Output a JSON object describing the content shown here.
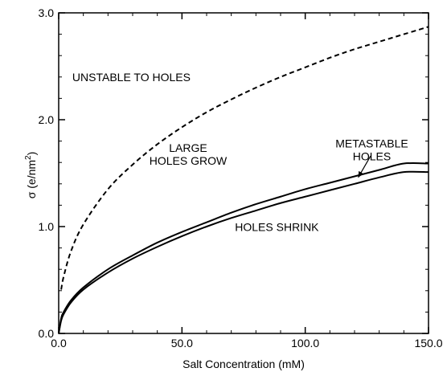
{
  "chart_data": {
    "type": "line",
    "title": "",
    "xlabel": "Salt Concentration (mM)",
    "ylabel_main": "σ  (e/nm",
    "ylabel_sup": "2",
    "ylabel_close": ")",
    "xlim": [
      0,
      150
    ],
    "ylim": [
      0,
      3.0
    ],
    "grid": false,
    "legend": "none",
    "x_ticks": [
      0,
      50,
      100,
      150
    ],
    "x_tick_labels": [
      "0.0",
      "50.0",
      "100.0",
      "150.0"
    ],
    "y_ticks": [
      0,
      1.0,
      2.0,
      3.0
    ],
    "y_tick_labels": [
      "0.0",
      "1.0",
      "2.0",
      "3.0"
    ],
    "series": [
      {
        "style": "dashed",
        "x": [
          1,
          2,
          5,
          10,
          20,
          30,
          40,
          50,
          60,
          70,
          80,
          90,
          100,
          110,
          120,
          130,
          140,
          150
        ],
        "values": [
          0.41,
          0.53,
          0.77,
          1.02,
          1.35,
          1.58,
          1.77,
          1.93,
          2.07,
          2.19,
          2.3,
          2.4,
          2.49,
          2.58,
          2.66,
          2.73,
          2.8,
          2.87
        ]
      },
      {
        "style": "solid",
        "x": [
          0,
          1,
          2,
          5,
          10,
          20,
          30,
          40,
          50,
          60,
          70,
          80,
          90,
          100,
          110,
          120,
          130,
          140,
          150
        ],
        "values": [
          0.0,
          0.14,
          0.2,
          0.31,
          0.43,
          0.6,
          0.73,
          0.85,
          0.95,
          1.04,
          1.13,
          1.21,
          1.28,
          1.35,
          1.41,
          1.47,
          1.53,
          1.59,
          1.59
        ]
      },
      {
        "style": "solid",
        "x": [
          0,
          1,
          2,
          5,
          10,
          20,
          30,
          40,
          50,
          60,
          70,
          80,
          90,
          100,
          110,
          120,
          130,
          140,
          150
        ],
        "values": [
          0.0,
          0.12,
          0.18,
          0.29,
          0.41,
          0.57,
          0.7,
          0.81,
          0.91,
          1.0,
          1.08,
          1.15,
          1.22,
          1.28,
          1.34,
          1.4,
          1.46,
          1.51,
          1.51
        ]
      }
    ],
    "annotations": [
      {
        "lines": [
          "UNSTABLE TO HOLES"
        ],
        "x": 29.5,
        "y": 2.36
      },
      {
        "lines": [
          "LARGE",
          "HOLES GROW"
        ],
        "x": 52.5,
        "y": 1.7
      },
      {
        "lines": [
          "METASTABLE",
          "HOLES"
        ],
        "x": 127,
        "y": 1.74
      },
      {
        "lines": [
          "HOLES SHRINK"
        ],
        "x": 88.5,
        "y": 0.96
      }
    ],
    "arrow": {
      "from": [
        126.5,
        1.66
      ],
      "to": [
        121.5,
        1.46
      ]
    }
  }
}
